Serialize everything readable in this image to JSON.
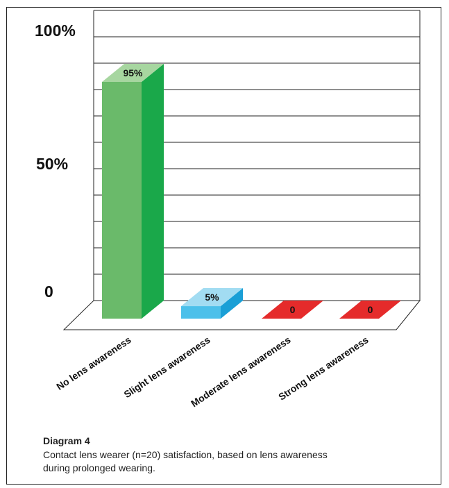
{
  "chart_data": {
    "type": "bar",
    "categories": [
      "No lens awareness",
      "Slight lens awareness",
      "Moderate lens awareness",
      "Strong lens awareness"
    ],
    "values": [
      95,
      5,
      0,
      0
    ],
    "value_labels": [
      "95%",
      "5%",
      "0",
      "0"
    ],
    "ytick_labels": [
      "100%",
      "50%",
      "0"
    ],
    "ylim": [
      0,
      100
    ],
    "colors": {
      "green_front": "#6aba6a",
      "green_side": "#1aa84a",
      "green_top": "#a7d6a0",
      "blue_front": "#4cc0ea",
      "blue_side": "#1a9fd6",
      "blue_top": "#a2dcf2",
      "red": "#e52b2b"
    },
    "grid": true
  },
  "caption": {
    "title": "Diagram 4",
    "text": "Contact lens wearer (n=20) satisfaction, based on lens awareness during prolonged wearing."
  }
}
